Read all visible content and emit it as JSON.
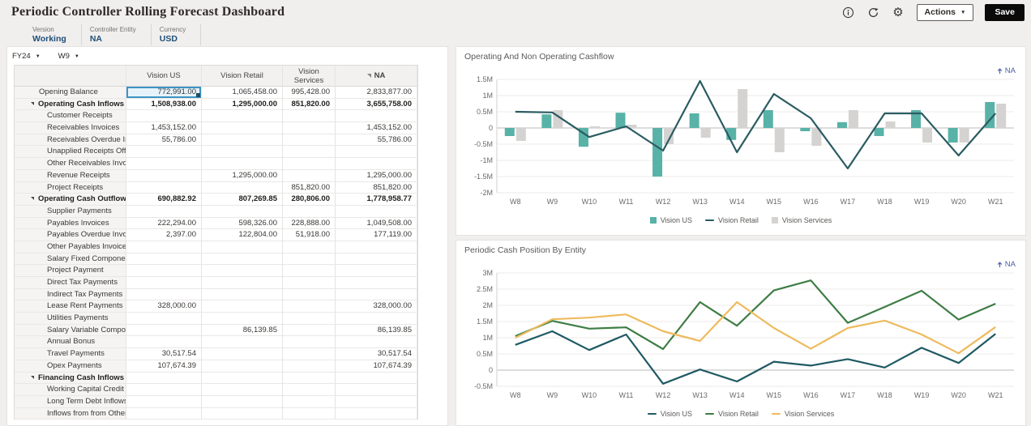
{
  "header": {
    "title": "Periodic Controller Rolling Forecast Dashboard",
    "actions_label": "Actions",
    "save_label": "Save"
  },
  "pov": {
    "items": [
      {
        "label": "Version",
        "value": "Working"
      },
      {
        "label": "Controller Entity",
        "value": "NA"
      },
      {
        "label": "Currency",
        "value": "USD"
      }
    ]
  },
  "grid": {
    "year": "FY24",
    "week": "W9",
    "columns": [
      "",
      "Vision US",
      "Vision Retail",
      "Vision Services",
      "NA"
    ],
    "rows": [
      {
        "label": "Opening Balance",
        "type": "plain",
        "values": [
          "772,991.00",
          "1,065,458.00",
          "995,428.00",
          "2,833,877.00"
        ],
        "selected_col": 0
      },
      {
        "label": "Operating Cash Inflows",
        "type": "parent",
        "values": [
          "1,508,938.00",
          "1,295,000.00",
          "851,820.00",
          "3,655,758.00"
        ]
      },
      {
        "label": "Customer Receipts",
        "type": "child",
        "values": [
          "",
          "",
          "",
          ""
        ]
      },
      {
        "label": "Receivables Invoices",
        "type": "child",
        "values": [
          "1,453,152.00",
          "",
          "",
          "1,453,152.00"
        ]
      },
      {
        "label": "Receivables Overdue Invoices",
        "type": "child",
        "values": [
          "55,786.00",
          "",
          "",
          "55,786.00"
        ]
      },
      {
        "label": "Unapplied Receipts Offset",
        "type": "child",
        "values": [
          "",
          "",
          "",
          ""
        ]
      },
      {
        "label": "Other Receivables Invoices",
        "type": "child",
        "values": [
          "",
          "",
          "",
          ""
        ]
      },
      {
        "label": "Revenue Receipts",
        "type": "child",
        "values": [
          "",
          "1,295,000.00",
          "",
          "1,295,000.00"
        ]
      },
      {
        "label": "Project Receipts",
        "type": "child",
        "values": [
          "",
          "",
          "851,820.00",
          "851,820.00"
        ]
      },
      {
        "label": "Operating Cash Outflows",
        "type": "parent",
        "values": [
          "690,882.92",
          "807,269.85",
          "280,806.00",
          "1,778,958.77"
        ]
      },
      {
        "label": "Supplier Payments",
        "type": "child",
        "values": [
          "",
          "",
          "",
          ""
        ]
      },
      {
        "label": "Payables Invoices",
        "type": "child",
        "values": [
          "222,294.00",
          "598,326.00",
          "228,888.00",
          "1,049,508.00"
        ]
      },
      {
        "label": "Payables Overdue Invoices",
        "type": "child",
        "values": [
          "2,397.00",
          "122,804.00",
          "51,918.00",
          "177,119.00"
        ]
      },
      {
        "label": "Other Payables Invoices",
        "type": "child",
        "values": [
          "",
          "",
          "",
          ""
        ]
      },
      {
        "label": "Salary Fixed  Component",
        "type": "child",
        "values": [
          "",
          "",
          "",
          ""
        ]
      },
      {
        "label": "Project Payment",
        "type": "child",
        "values": [
          "",
          "",
          "",
          ""
        ]
      },
      {
        "label": "Direct Tax Payments",
        "type": "child",
        "values": [
          "",
          "",
          "",
          ""
        ]
      },
      {
        "label": "Indirect Tax Payments",
        "type": "child",
        "values": [
          "",
          "",
          "",
          ""
        ]
      },
      {
        "label": "Lease Rent Payments",
        "type": "child",
        "values": [
          "328,000.00",
          "",
          "",
          "328,000.00"
        ]
      },
      {
        "label": "Utilities Payments",
        "type": "child",
        "values": [
          "",
          "",
          "",
          ""
        ]
      },
      {
        "label": "Salary Variable Component",
        "type": "child",
        "values": [
          "",
          "86,139.85",
          "",
          "86,139.85"
        ]
      },
      {
        "label": "Annual Bonus",
        "type": "child",
        "values": [
          "",
          "",
          "",
          ""
        ]
      },
      {
        "label": "Travel Payments",
        "type": "child",
        "values": [
          "30,517.54",
          "",
          "",
          "30,517.54"
        ]
      },
      {
        "label": "Opex Payments",
        "type": "child",
        "values": [
          "107,674.39",
          "",
          "",
          "107,674.39"
        ]
      },
      {
        "label": "Financing Cash Inflows",
        "type": "parent",
        "values": [
          "",
          "",
          "",
          ""
        ]
      },
      {
        "label": "Working Capital Credit",
        "type": "child",
        "values": [
          "",
          "",
          "",
          ""
        ]
      },
      {
        "label": "Long Term Debt Inflows",
        "type": "child",
        "values": [
          "",
          "",
          "",
          ""
        ]
      },
      {
        "label": "Inflows from from Other Entities",
        "type": "child",
        "values": [
          "",
          "",
          "",
          ""
        ]
      }
    ]
  },
  "chart_data": [
    {
      "type": "bar",
      "subtype": "combo-bar-line",
      "title": "Operating And Non Operating Cashflow",
      "link_label": "NA",
      "categories": [
        "W8",
        "W9",
        "W10",
        "W11",
        "W12",
        "W13",
        "W14",
        "W15",
        "W16",
        "W17",
        "W18",
        "W19",
        "W20",
        "W21"
      ],
      "unit": "M",
      "ylim": [
        -2,
        1.5
      ],
      "ystep": 0.5,
      "grid": true,
      "legend_position": "bottom",
      "series": [
        {
          "name": "Vision US",
          "render": "bar",
          "color": "#58b2a7",
          "values": [
            -0.25,
            0.42,
            -0.58,
            0.47,
            -1.5,
            0.45,
            -0.37,
            0.55,
            -0.1,
            0.18,
            -0.25,
            0.55,
            -0.45,
            0.8
          ]
        },
        {
          "name": "Vision Retail",
          "render": "line",
          "color": "#2a5c62",
          "values": [
            0.5,
            0.48,
            -0.28,
            0.05,
            -0.7,
            1.45,
            -0.75,
            1.05,
            0.3,
            -1.25,
            0.45,
            0.45,
            -0.85,
            0.45
          ]
        },
        {
          "name": "Vision Services",
          "render": "bar",
          "color": "#d5d3d1",
          "values": [
            -0.4,
            0.55,
            0.05,
            0.1,
            -0.5,
            -0.3,
            1.2,
            -0.75,
            -0.55,
            0.55,
            0.2,
            -0.45,
            -0.45,
            0.75
          ]
        }
      ]
    },
    {
      "type": "line",
      "title": "Periodic Cash Position By Entity",
      "link_label": "NA",
      "categories": [
        "W8",
        "W9",
        "W10",
        "W11",
        "W12",
        "W13",
        "W14",
        "W15",
        "W16",
        "W17",
        "W18",
        "W19",
        "W20",
        "W21"
      ],
      "unit": "M",
      "ylim": [
        -0.5,
        3
      ],
      "ystep": 0.5,
      "grid": true,
      "legend_position": "bottom",
      "series": [
        {
          "name": "Vision US",
          "render": "line",
          "color": "#1f5a64",
          "values": [
            0.78,
            1.2,
            0.62,
            1.1,
            -0.42,
            0.02,
            -0.35,
            0.26,
            0.14,
            0.34,
            0.08,
            0.69,
            0.22,
            1.12
          ]
        },
        {
          "name": "Vision Retail",
          "render": "line",
          "color": "#3e7d45",
          "values": [
            1.05,
            1.52,
            1.28,
            1.32,
            0.65,
            2.1,
            1.37,
            2.46,
            2.77,
            1.46,
            1.95,
            2.45,
            1.56,
            2.05
          ]
        },
        {
          "name": "Vision Services",
          "render": "line",
          "color": "#eebb5e",
          "values": [
            1.0,
            1.57,
            1.62,
            1.72,
            1.2,
            0.9,
            2.1,
            1.3,
            0.66,
            1.3,
            1.53,
            1.1,
            0.52,
            1.33
          ]
        }
      ]
    }
  ]
}
